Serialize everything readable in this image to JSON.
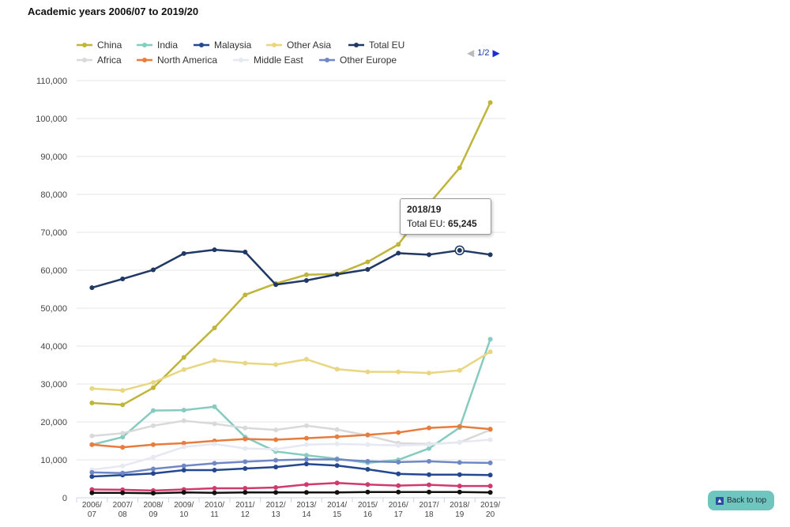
{
  "page": {
    "title": "Academic years 2006/07 to 2019/20",
    "back_to_top": "Back to top",
    "pager": "1/2"
  },
  "tooltip": {
    "title": "2018/19",
    "series_label": "Total EU:",
    "value": "65,245"
  },
  "colors": {
    "grid": "#e6e6e6",
    "axis": "#ccd6eb"
  },
  "chart_data": {
    "type": "line",
    "title": "Academic years 2006/07 to 2019/20",
    "xlabel": "",
    "ylabel": "",
    "ylim": [
      0,
      110000
    ],
    "yticks": [
      0,
      10000,
      20000,
      30000,
      40000,
      50000,
      60000,
      70000,
      80000,
      90000,
      100000,
      110000
    ],
    "ytick_labels": [
      "0",
      "10,000",
      "20,000",
      "30,000",
      "40,000",
      "50,000",
      "60,000",
      "70,000",
      "80,000",
      "90,000",
      "100,000",
      "110,000"
    ],
    "grid": true,
    "legend_position": "top-left",
    "categories": [
      [
        "2006/",
        "07"
      ],
      [
        "2007/",
        "08"
      ],
      [
        "2008/",
        "09"
      ],
      [
        "2009/",
        "10"
      ],
      [
        "2010/",
        "11"
      ],
      [
        "2011/",
        "12"
      ],
      [
        "2012/",
        "13"
      ],
      [
        "2013/",
        "14"
      ],
      [
        "2014/",
        "15"
      ],
      [
        "2015/",
        "16"
      ],
      [
        "2016/",
        "17"
      ],
      [
        "2017/",
        "18"
      ],
      [
        "2018/",
        "19"
      ],
      [
        "2019/",
        "20"
      ]
    ],
    "series": [
      {
        "name": "China",
        "color": "#bfb53a",
        "values": [
          25000,
          24500,
          29000,
          37000,
          44800,
          53500,
          56500,
          58800,
          59000,
          62200,
          66800,
          77500,
          87000,
          104200
        ]
      },
      {
        "name": "India",
        "color": "#86cbc0",
        "values": [
          14000,
          16000,
          23000,
          23100,
          24000,
          16000,
          12200,
          11200,
          10300,
          9200,
          10000,
          13000,
          18500,
          41800
        ]
      },
      {
        "name": "Malaysia",
        "color": "#24488f",
        "values": [
          5600,
          6000,
          6400,
          7300,
          7300,
          7700,
          8100,
          8900,
          8500,
          7500,
          6300,
          6100,
          6100,
          6000
        ]
      },
      {
        "name": "Other Asia",
        "color": "#e8d682",
        "values": [
          28800,
          28300,
          30400,
          33800,
          36200,
          35500,
          35100,
          36500,
          33900,
          33200,
          33200,
          32900,
          33600,
          38500
        ]
      },
      {
        "name": "Total EU",
        "color": "#203864",
        "values": [
          55400,
          57700,
          60100,
          64400,
          65400,
          64800,
          56200,
          57300,
          58900,
          60200,
          64500,
          64100,
          65245,
          64100
        ]
      },
      {
        "name": "Africa",
        "color": "#d9d9d9",
        "values": [
          16300,
          17000,
          19000,
          20300,
          19500,
          18400,
          17900,
          19000,
          18000,
          16400,
          14400,
          14200,
          14600,
          17900
        ]
      },
      {
        "name": "North America",
        "color": "#e87c3d",
        "values": [
          14000,
          13300,
          14000,
          14400,
          15000,
          15500,
          15300,
          15700,
          16100,
          16600,
          17200,
          18400,
          18800,
          18100
        ]
      },
      {
        "name": "Middle East",
        "color": "#e6e8f2",
        "values": [
          7400,
          8400,
          10700,
          13400,
          14200,
          13000,
          12800,
          14000,
          14200,
          14000,
          13800,
          14000,
          14700,
          15300
        ]
      },
      {
        "name": "Other Europe",
        "color": "#6f87c4",
        "values": [
          6700,
          6500,
          7600,
          8400,
          9100,
          9500,
          9900,
          10100,
          10100,
          9600,
          9400,
          9600,
          9300,
          9200
        ]
      },
      {
        "color": "#d03a6e",
        "values": [
          2200,
          2100,
          1900,
          2200,
          2500,
          2500,
          2700,
          3500,
          3900,
          3500,
          3200,
          3400,
          3100,
          3100
        ]
      },
      {
        "color": "#111111",
        "values": [
          1300,
          1300,
          1200,
          1400,
          1300,
          1400,
          1400,
          1400,
          1400,
          1500,
          1500,
          1500,
          1500,
          1400
        ]
      }
    ]
  }
}
